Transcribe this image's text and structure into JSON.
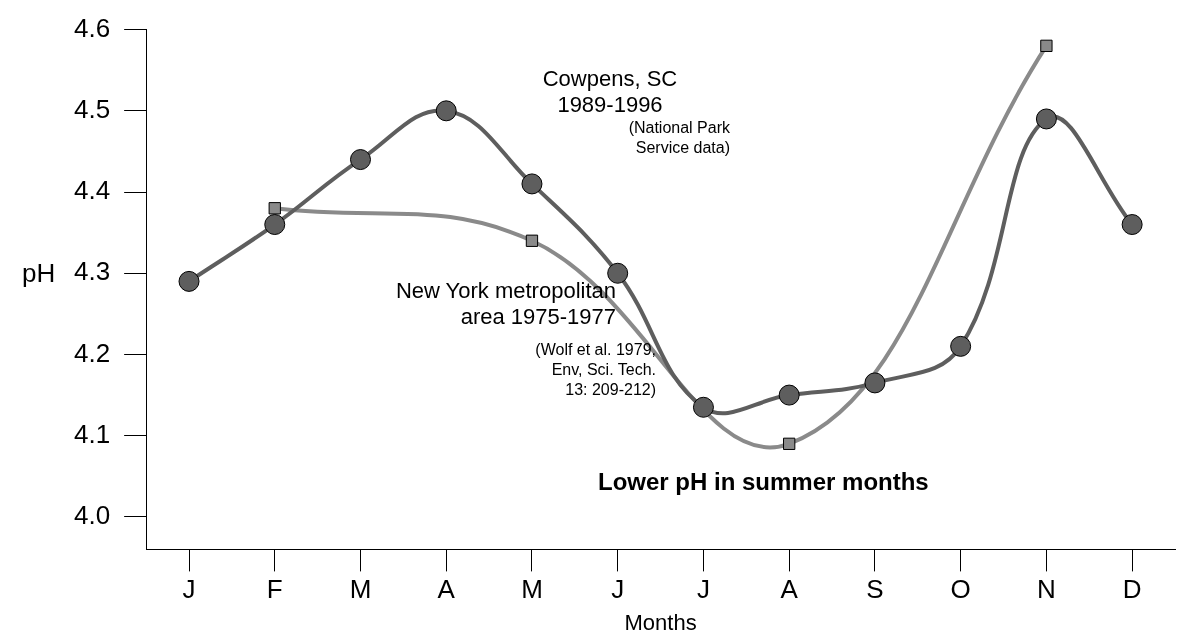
{
  "chart_data": {
    "type": "line",
    "xlabel": "Months",
    "ylabel": "pH",
    "categories": [
      "J",
      "F",
      "M",
      "A",
      "M",
      "J",
      "J",
      "A",
      "S",
      "O",
      "N",
      "D"
    ],
    "series": [
      {
        "name": "Cowpens, SC\n1989-1996",
        "color": "#5e5e5e",
        "marker": "circle",
        "values": [
          4.29,
          4.36,
          4.44,
          4.5,
          4.41,
          4.3,
          4.135,
          4.15,
          4.165,
          4.21,
          4.49,
          4.36
        ]
      },
      {
        "name": "New York metropolitan\narea 1975-1977",
        "color": "#8a8a8a",
        "marker": "square",
        "values": [
          null,
          4.38,
          null,
          null,
          4.34,
          null,
          null,
          4.09,
          null,
          null,
          4.58,
          null
        ]
      }
    ],
    "annotations": [
      "(National Park\nService data)",
      "(Wolf et al. 1979,\nEnv, Sci. Tech.\n13: 209-212)",
      "Lower pH in summer months"
    ],
    "ylim": [
      3.96,
      4.6
    ],
    "yticks": [
      {
        "value": 4.0,
        "label": "4.0"
      },
      4.1,
      4.2,
      4.3,
      4.4,
      4.5,
      4.6
    ],
    "grid": false,
    "legend": false,
    "line_style": "solid"
  }
}
